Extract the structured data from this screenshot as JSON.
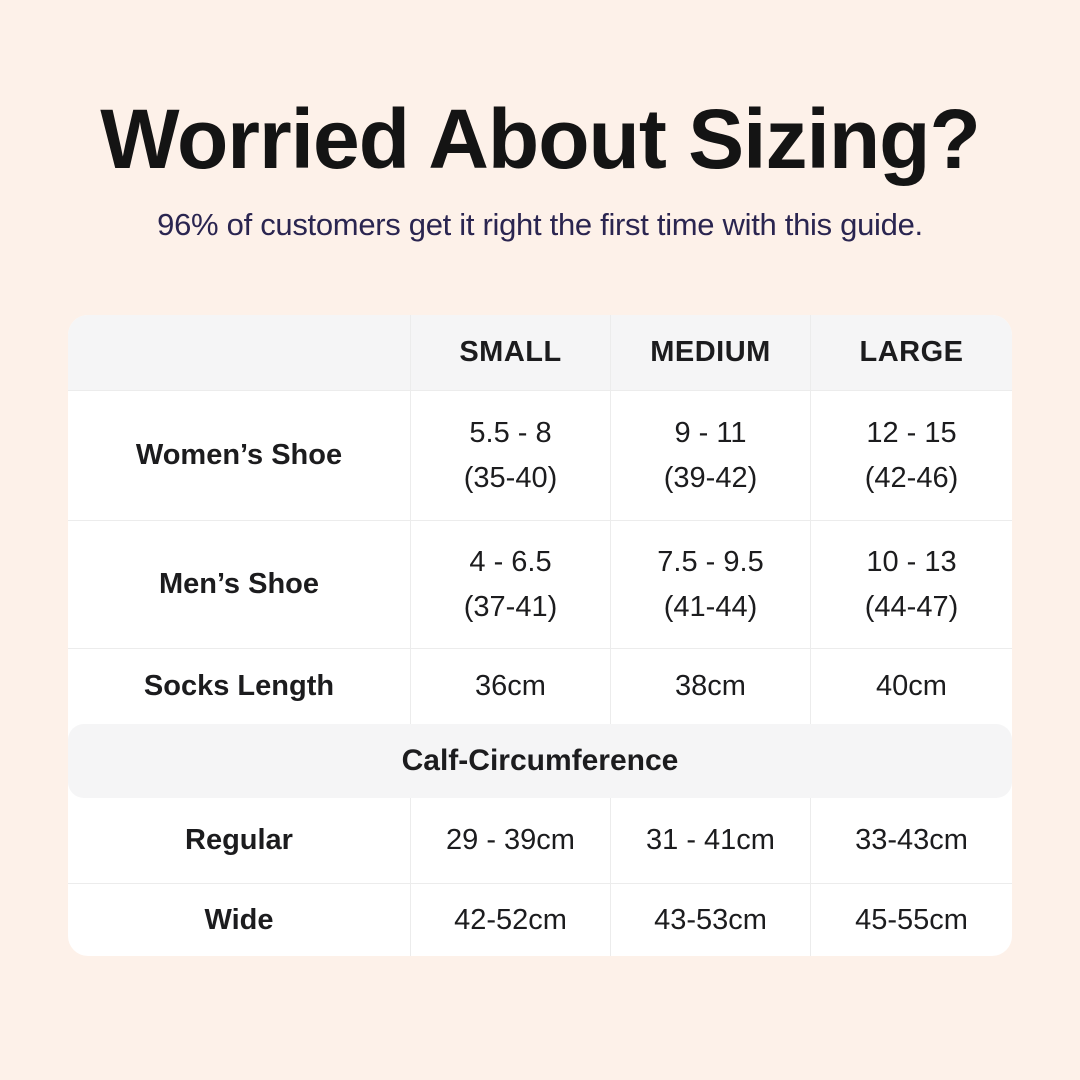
{
  "header": {
    "title": "Worried About Sizing?",
    "subtitle": "96% of customers get it right the first time with this guide."
  },
  "size_table": {
    "column_headers": [
      "SMALL",
      "MEDIUM",
      "LARGE"
    ],
    "shoe_rows": [
      {
        "label": "Women’s Shoe",
        "cells": [
          {
            "line1": "5.5 - 8",
            "line2": "(35-40)"
          },
          {
            "line1": "9 - 11",
            "line2": "(39-42)"
          },
          {
            "line1": "12 - 15",
            "line2": "(42-46)"
          }
        ]
      },
      {
        "label": "Men’s Shoe",
        "cells": [
          {
            "line1": "4 - 6.5",
            "line2": "(37-41)"
          },
          {
            "line1": "7.5 - 9.5",
            "line2": "(41-44)"
          },
          {
            "line1": "10 - 13",
            "line2": "(44-47)"
          }
        ]
      }
    ],
    "socks_row": {
      "label": "Socks Length",
      "cells": [
        "36cm",
        "38cm",
        "40cm"
      ]
    },
    "section_header": "Calf-Circumference",
    "calf_rows": [
      {
        "label": "Regular",
        "cells": [
          "29 - 39cm",
          "31 - 41cm",
          "33-43cm"
        ]
      },
      {
        "label": "Wide",
        "cells": [
          "42-52cm",
          "43-53cm",
          "45-55cm"
        ]
      }
    ]
  },
  "colors": {
    "background": "#fdf1e9",
    "table_background": "#ffffff",
    "band_gray": "#f5f5f6",
    "divider": "#ececec",
    "title_text": "#141414",
    "subtitle_text": "#2a2550",
    "table_text": "#1c1c1e"
  },
  "chart_data": {
    "type": "table",
    "title": "Worried About Sizing?",
    "subtitle": "96% of customers get it right the first time with this guide.",
    "columns": [
      "",
      "SMALL",
      "MEDIUM",
      "LARGE"
    ],
    "rows": [
      [
        "Women’s Shoe",
        "5.5 - 8 (35-40)",
        "9 - 11 (39-42)",
        "12 - 15 (42-46)"
      ],
      [
        "Men’s Shoe",
        "4 - 6.5 (37-41)",
        "7.5 - 9.5 (41-44)",
        "10 - 13 (44-47)"
      ],
      [
        "Socks Length",
        "36cm",
        "38cm",
        "40cm"
      ],
      [
        "Calf-Circumference (section header spanning all columns)",
        "",
        "",
        ""
      ],
      [
        "Regular",
        "29 - 39cm",
        "31 - 41cm",
        "33-43cm"
      ],
      [
        "Wide",
        "42-52cm",
        "43-53cm",
        "45-55cm"
      ]
    ],
    "layout": "header row and section band have light gray background; body white; rounded corners; centered text"
  }
}
